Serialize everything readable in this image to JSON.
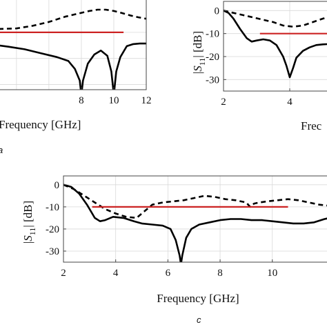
{
  "panel_labels": [
    "a",
    "c"
  ],
  "chart_data": [
    {
      "type": "line",
      "id": "a",
      "xlabel": "Frequency [GHz]",
      "ylabel": "",
      "xlim": [
        2.9,
        12
      ],
      "ylim": [
        -32,
        4
      ],
      "xticks": [
        8,
        10,
        12
      ],
      "yticks": [],
      "grid": true,
      "series": [
        {
          "style": "solid",
          "color": "#000000",
          "x": [
            2.9,
            3.5,
            4.5,
            5.5,
            6.5,
            7.2,
            7.6,
            7.9,
            8.0,
            8.1,
            8.4,
            8.8,
            9.2,
            9.6,
            9.85,
            10.0,
            10.15,
            10.4,
            10.8,
            11.2,
            11.6,
            12.0
          ],
          "y": [
            -15,
            -15.5,
            -16.5,
            -18,
            -19.5,
            -21,
            -24,
            -28.5,
            -34,
            -28.5,
            -22,
            -18.5,
            -17,
            -19,
            -25,
            -34,
            -25,
            -19.5,
            -15.3,
            -14.5,
            -14.3,
            -14.3
          ]
        },
        {
          "style": "dashed",
          "color": "#000000",
          "x": [
            2.9,
            4,
            5,
            6,
            7,
            8,
            8.5,
            9,
            9.5,
            10,
            10.5,
            11,
            11.5,
            12
          ],
          "y": [
            -8.7,
            -8.5,
            -7.5,
            -6,
            -4,
            -2.5,
            -1.8,
            -1.3,
            -1.3,
            -1.8,
            -2.6,
            -3.5,
            -4.2,
            -4.8
          ]
        },
        {
          "style": "solid",
          "color": "#cc2222",
          "x": [
            2.9,
            10.6
          ],
          "y": [
            -10,
            -10
          ]
        }
      ]
    },
    {
      "type": "line",
      "id": "b",
      "xlabel": "Frec",
      "ylabel": "|S11| [dB]",
      "xlim": [
        2,
        5.25
      ],
      "ylim": [
        -35,
        4
      ],
      "xticks": [
        2,
        4
      ],
      "yticks": [
        0,
        -10,
        -20,
        -30
      ],
      "grid": true,
      "series": [
        {
          "style": "solid",
          "color": "#000000",
          "x": [
            2,
            2.15,
            2.3,
            2.5,
            2.7,
            2.85,
            3.0,
            3.2,
            3.4,
            3.6,
            3.8,
            3.9,
            4.0,
            4.1,
            4.2,
            4.4,
            4.6,
            4.8,
            5.0,
            5.25
          ],
          "y": [
            0,
            -1,
            -3.5,
            -8,
            -12,
            -13.5,
            -13,
            -12.5,
            -13,
            -15,
            -20,
            -24,
            -29,
            -25,
            -20.5,
            -17.5,
            -16,
            -15,
            -14.7,
            -14.5
          ]
        },
        {
          "style": "dashed",
          "color": "#000000",
          "x": [
            2,
            2.3,
            2.6,
            2.9,
            3.2,
            3.5,
            3.8,
            4.1,
            4.4,
            4.7,
            5.0,
            5.25
          ],
          "y": [
            0,
            -1,
            -2,
            -3,
            -4,
            -5,
            -6.5,
            -7,
            -6.5,
            -5,
            -3.5,
            -2.5
          ]
        },
        {
          "style": "solid",
          "color": "#cc2222",
          "x": [
            3.1,
            5.25
          ],
          "y": [
            -10,
            -10
          ]
        }
      ]
    },
    {
      "type": "line",
      "id": "c",
      "xlabel": "Frequency [GHz]",
      "ylabel": "|S11| [dB]",
      "xlim": [
        2,
        12.2
      ],
      "ylim": [
        -35,
        4
      ],
      "xticks": [
        2,
        4,
        6,
        8,
        10
      ],
      "yticks": [
        0,
        -10,
        -20,
        -30
      ],
      "grid": true,
      "series": [
        {
          "style": "solid",
          "color": "#000000",
          "x": [
            2,
            2.3,
            2.6,
            2.9,
            3.2,
            3.4,
            3.6,
            3.9,
            4.3,
            4.7,
            5.0,
            5.4,
            5.8,
            6.1,
            6.3,
            6.45,
            6.5,
            6.55,
            6.7,
            6.9,
            7.2,
            7.6,
            8.0,
            8.4,
            8.8,
            9.2,
            9.6,
            10.0,
            10.4,
            10.8,
            11.2,
            11.6,
            12.0,
            12.2
          ],
          "y": [
            0,
            -1,
            -4,
            -9,
            -15,
            -16.5,
            -16,
            -14.5,
            -15,
            -16.5,
            -17.5,
            -18,
            -18.5,
            -20,
            -25,
            -32,
            -36,
            -32,
            -24,
            -20,
            -18,
            -17,
            -16,
            -15.5,
            -15.5,
            -16,
            -16,
            -16.5,
            -17,
            -17.5,
            -17.5,
            -17,
            -15.5,
            -15
          ]
        },
        {
          "style": "dashed",
          "color": "#000000",
          "x": [
            2,
            2.4,
            2.8,
            3.2,
            3.6,
            4.0,
            4.4,
            4.8,
            5.0,
            5.4,
            5.8,
            6.2,
            6.6,
            7.0,
            7.4,
            7.8,
            8.2,
            8.6,
            9.0,
            9.15,
            9.3,
            9.5,
            9.8,
            10.2,
            10.6,
            11.0,
            11.4,
            11.8,
            12.2
          ],
          "y": [
            0,
            -2,
            -5,
            -8,
            -11,
            -13,
            -14.5,
            -15,
            -13,
            -9,
            -8,
            -7.5,
            -7,
            -6,
            -5,
            -5.5,
            -6.5,
            -7,
            -8,
            -10,
            -8.5,
            -8,
            -7.5,
            -7,
            -6.5,
            -7,
            -8,
            -9,
            -9.5
          ]
        },
        {
          "style": "solid",
          "color": "#cc2222",
          "x": [
            3.1,
            10.6
          ],
          "y": [
            -10,
            -10
          ]
        }
      ]
    }
  ]
}
